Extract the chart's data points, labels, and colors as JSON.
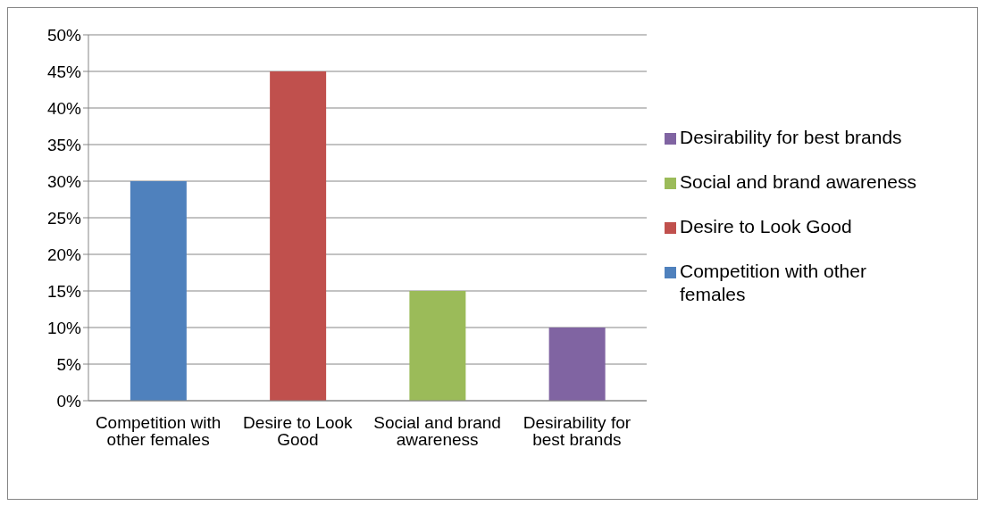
{
  "chart_data": {
    "type": "bar",
    "categories": [
      "Competition with other females",
      "Desire to Look Good",
      "Social and brand awareness",
      "Desirability for best brands"
    ],
    "stacked": true,
    "series": [
      {
        "name": "Competition with other females",
        "color": "#4f81bd",
        "values": [
          30,
          null,
          null,
          null
        ]
      },
      {
        "name": "Desire to Look Good",
        "color": "#c0504d",
        "values": [
          null,
          45,
          null,
          null
        ]
      },
      {
        "name": "Social and brand awareness",
        "color": "#9bbb59",
        "values": [
          null,
          null,
          15,
          null
        ]
      },
      {
        "name": "Desirability for best brands",
        "color": "#8064a2",
        "values": [
          null,
          null,
          null,
          10
        ]
      }
    ],
    "ylim": [
      0,
      50
    ],
    "yticks": [
      {
        "value": 0,
        "label": "0%"
      },
      {
        "value": 5,
        "label": "5%"
      },
      {
        "value": 10,
        "label": "10%"
      },
      {
        "value": 15,
        "label": "15%"
      },
      {
        "value": 20,
        "label": "20%"
      },
      {
        "value": 25,
        "label": "25%"
      },
      {
        "value": 30,
        "label": "30%"
      },
      {
        "value": 35,
        "label": "35%"
      },
      {
        "value": 40,
        "label": "40%"
      },
      {
        "value": 45,
        "label": "45%"
      },
      {
        "value": 50,
        "label": "50%"
      }
    ],
    "grid": "y",
    "legend": "right"
  }
}
